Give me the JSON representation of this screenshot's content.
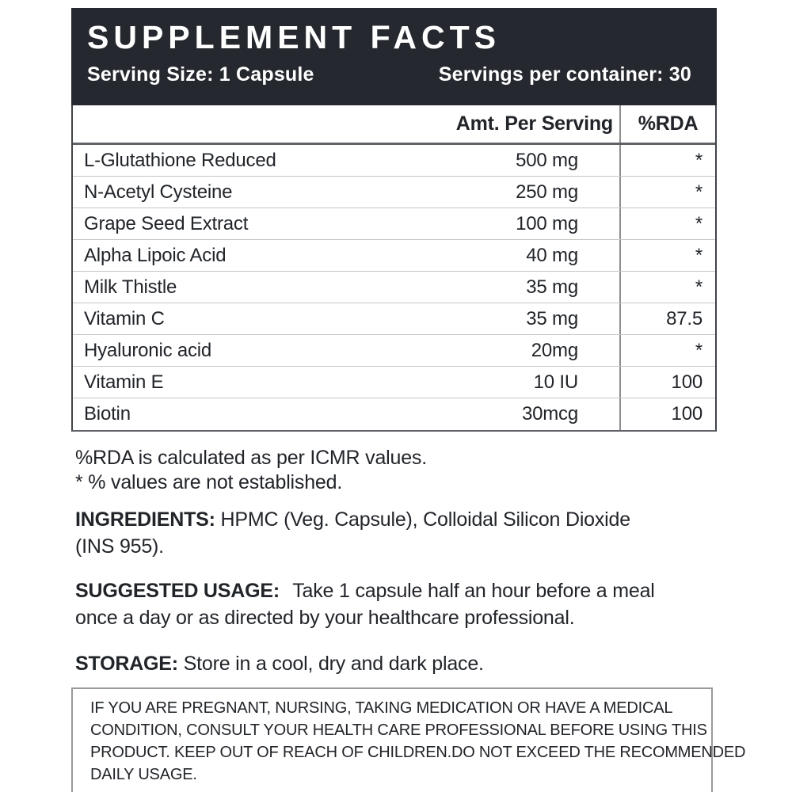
{
  "header": {
    "title": "SUPPLEMENT FACTS",
    "serving_size": "Serving Size: 1 Capsule",
    "servings_per_container": "Servings per container: 30"
  },
  "table": {
    "columns": {
      "name": "",
      "amount": "Amt. Per Serving",
      "rda": "%RDA"
    },
    "rows": [
      {
        "name": "L-Glutathione Reduced",
        "amount": "500 mg",
        "rda": "*"
      },
      {
        "name": "N-Acetyl Cysteine",
        "amount": "250 mg",
        "rda": "*"
      },
      {
        "name": "Grape Seed Extract",
        "amount": "100 mg",
        "rda": "*"
      },
      {
        "name": "Alpha Lipoic Acid",
        "amount": "40 mg",
        "rda": "*"
      },
      {
        "name": "Milk Thistle",
        "amount": "35 mg",
        "rda": "*"
      },
      {
        "name": "Vitamin C",
        "amount": "35 mg",
        "rda": "87.5"
      },
      {
        "name": "Hyaluronic acid",
        "amount": "20mg",
        "rda": "*"
      },
      {
        "name": "Vitamin E",
        "amount": "10 IU",
        "rda": "100"
      },
      {
        "name": "Biotin",
        "amount": "30mcg",
        "rda": "100"
      }
    ]
  },
  "footnotes": {
    "rda_note": "%RDA is calculated as per ICMR values.",
    "asterisk_note": "* % values are not established."
  },
  "ingredients": {
    "label": "INGREDIENTS:",
    "line1": "HPMC (Veg. Capsule), Colloidal Silicon Dioxide",
    "line2": "(INS 955)."
  },
  "suggested_usage": {
    "label": "SUGGESTED USAGE:",
    "line1": "Take 1 capsule half an hour before a meal",
    "line2": "once a day or as directed by your healthcare professional."
  },
  "storage": {
    "label": "STORAGE:",
    "text": "Store in a cool, dry and dark place."
  },
  "warning": {
    "lines": [
      "IF YOU ARE PREGNANT, NURSING, TAKING MEDICATION OR HAVE A MEDICAL",
      "CONDITION, CONSULT YOUR HEALTH CARE PROFESSIONAL BEFORE USING THIS",
      "PRODUCT. KEEP OUT OF REACH OF CHILDREN.DO NOT EXCEED THE RECOMMENDED",
      "DAILY USAGE."
    ]
  },
  "colors": {
    "header_bg": "#25282e",
    "text": "#212429",
    "row_divider": "#c6c6c6",
    "thick_divider": "#5f6368",
    "table_border": "#3f4348",
    "col_divider": "#8d8d8d",
    "warning_border": "#9a9a9a"
  }
}
